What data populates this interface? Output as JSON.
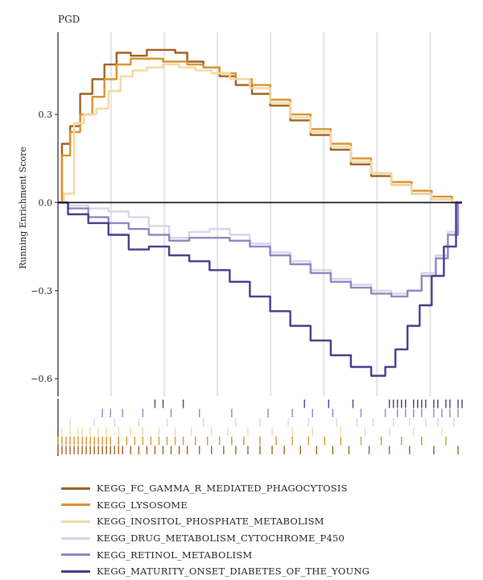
{
  "chart_data": {
    "type": "line",
    "title": "PGD",
    "xlabel": "",
    "ylabel": "Running Enrichment Score",
    "ylim": [
      -0.66,
      0.58
    ],
    "yticks": [
      0.3,
      0.0,
      -0.3,
      -0.6
    ],
    "ytick_labels": [
      "0.3",
      "0.0",
      "−0.3",
      "−0.6"
    ],
    "grid": "vertical",
    "legend_position": "bottom",
    "x_range": [
      0,
      1
    ],
    "series": [
      {
        "name": "KEGG_FC_GAMMA_R_MEDIATED_PHAGOCYTOSIS",
        "color": "#a0601e",
        "x": [
          0,
          0.02,
          0.04,
          0.07,
          0.1,
          0.13,
          0.16,
          0.2,
          0.24,
          0.28,
          0.3,
          0.34,
          0.38,
          0.42,
          0.46,
          0.5,
          0.55,
          0.6,
          0.65,
          0.7,
          0.75,
          0.8,
          0.85,
          0.9,
          0.95,
          1.0
        ],
        "values": [
          0,
          0.2,
          0.26,
          0.37,
          0.42,
          0.47,
          0.51,
          0.5,
          0.52,
          0.52,
          0.51,
          0.48,
          0.46,
          0.43,
          0.4,
          0.37,
          0.33,
          0.28,
          0.23,
          0.18,
          0.13,
          0.09,
          0.06,
          0.03,
          0.01,
          0
        ]
      },
      {
        "name": "KEGG_LYSOSOME",
        "color": "#d9922e",
        "x": [
          0,
          0.02,
          0.04,
          0.07,
          0.1,
          0.13,
          0.16,
          0.2,
          0.24,
          0.28,
          0.3,
          0.34,
          0.38,
          0.42,
          0.46,
          0.5,
          0.55,
          0.6,
          0.65,
          0.7,
          0.75,
          0.8,
          0.85,
          0.9,
          0.95,
          1.0
        ],
        "values": [
          0,
          0.16,
          0.24,
          0.3,
          0.36,
          0.42,
          0.47,
          0.49,
          0.49,
          0.48,
          0.48,
          0.47,
          0.46,
          0.44,
          0.42,
          0.4,
          0.35,
          0.3,
          0.25,
          0.2,
          0.15,
          0.1,
          0.07,
          0.04,
          0.02,
          0
        ]
      },
      {
        "name": "KEGG_INOSITOL_PHOSPHATE_METABOLISM",
        "color": "#f2d8a0",
        "x": [
          0,
          0.03,
          0.05,
          0.08,
          0.11,
          0.14,
          0.17,
          0.2,
          0.24,
          0.28,
          0.32,
          0.36,
          0.4,
          0.45,
          0.5,
          0.55,
          0.6,
          0.65,
          0.7,
          0.75,
          0.8,
          0.85,
          0.9,
          0.95,
          1.0
        ],
        "values": [
          0,
          0.03,
          0.27,
          0.3,
          0.32,
          0.38,
          0.43,
          0.45,
          0.46,
          0.47,
          0.46,
          0.45,
          0.44,
          0.42,
          0.39,
          0.34,
          0.29,
          0.24,
          0.19,
          0.14,
          0.1,
          0.06,
          0.03,
          0.01,
          0
        ]
      },
      {
        "name": "KEGG_DRUG_METABOLISM_CYTOCHROME_P450",
        "color": "#d8d4e8",
        "x": [
          0,
          0.05,
          0.1,
          0.15,
          0.2,
          0.25,
          0.3,
          0.35,
          0.4,
          0.45,
          0.5,
          0.55,
          0.6,
          0.65,
          0.7,
          0.75,
          0.8,
          0.85,
          0.88,
          0.92,
          0.95,
          0.98,
          1.0
        ],
        "values": [
          0,
          -0.01,
          -0.02,
          -0.03,
          -0.05,
          -0.08,
          -0.12,
          -0.1,
          -0.09,
          -0.11,
          -0.14,
          -0.17,
          -0.2,
          -0.23,
          -0.26,
          -0.28,
          -0.3,
          -0.31,
          -0.3,
          -0.24,
          -0.18,
          -0.1,
          0
        ]
      },
      {
        "name": "KEGG_RETINOL_METABOLISM",
        "color": "#8d87c0",
        "x": [
          0,
          0.05,
          0.1,
          0.15,
          0.2,
          0.25,
          0.3,
          0.35,
          0.4,
          0.45,
          0.5,
          0.55,
          0.6,
          0.65,
          0.7,
          0.75,
          0.8,
          0.85,
          0.88,
          0.92,
          0.95,
          0.98,
          1.0
        ],
        "values": [
          0,
          -0.02,
          -0.05,
          -0.07,
          -0.09,
          -0.11,
          -0.13,
          -0.12,
          -0.12,
          -0.13,
          -0.15,
          -0.18,
          -0.21,
          -0.24,
          -0.27,
          -0.29,
          -0.31,
          -0.32,
          -0.3,
          -0.25,
          -0.19,
          -0.11,
          0
        ]
      },
      {
        "name": "KEGG_MATURITY_ONSET_DIABETES_OF_THE_YOUNG",
        "color": "#4a3a8a",
        "x": [
          0,
          0.05,
          0.1,
          0.15,
          0.2,
          0.25,
          0.3,
          0.35,
          0.4,
          0.45,
          0.5,
          0.55,
          0.6,
          0.65,
          0.7,
          0.75,
          0.8,
          0.82,
          0.85,
          0.88,
          0.91,
          0.94,
          0.97,
          1.0
        ],
        "values": [
          0,
          -0.04,
          -0.07,
          -0.11,
          -0.16,
          -0.15,
          -0.18,
          -0.2,
          -0.23,
          -0.27,
          -0.32,
          -0.37,
          -0.42,
          -0.47,
          -0.52,
          -0.56,
          -0.59,
          -0.56,
          -0.5,
          -0.42,
          -0.35,
          -0.25,
          -0.15,
          0
        ]
      }
    ],
    "rug_rows": [
      {
        "series": "KEGG_MATURITY_ONSET_DIABETES_OF_THE_YOUNG",
        "positions": [
          0.24,
          0.26,
          0.31,
          0.61,
          0.67,
          0.73,
          0.82,
          0.83,
          0.84,
          0.85,
          0.86,
          0.88,
          0.89,
          0.9,
          0.91,
          0.93,
          0.94,
          0.96,
          0.97,
          0.99,
          1.0
        ]
      },
      {
        "series": "KEGG_RETINOL_METABOLISM",
        "positions": [
          0.11,
          0.13,
          0.16,
          0.21,
          0.28,
          0.35,
          0.43,
          0.52,
          0.58,
          0.63,
          0.68,
          0.75,
          0.81,
          0.84,
          0.86,
          0.88,
          0.9,
          0.93,
          0.95,
          0.97,
          0.99
        ]
      },
      {
        "series": "KEGG_DRUG_METABOLISM_CYTOCHROME_P450",
        "positions": [
          0.03,
          0.09,
          0.14,
          0.2,
          0.27,
          0.36,
          0.44,
          0.5,
          0.57,
          0.62,
          0.69,
          0.74,
          0.78,
          0.83,
          0.87,
          0.91,
          0.94,
          0.98
        ]
      },
      {
        "series": "KEGG_INOSITOL_PHOSPHATE_METABOLISM",
        "positions": [
          0.01,
          0.03,
          0.05,
          0.06,
          0.08,
          0.1,
          0.12,
          0.15,
          0.18,
          0.21,
          0.25,
          0.29,
          0.33,
          0.38,
          0.42,
          0.47,
          0.53,
          0.58,
          0.63,
          0.7,
          0.76,
          0.82,
          0.88,
          0.95
        ]
      },
      {
        "series": "KEGG_LYSOSOME",
        "positions": [
          0.0,
          0.01,
          0.02,
          0.03,
          0.04,
          0.05,
          0.06,
          0.07,
          0.08,
          0.09,
          0.1,
          0.11,
          0.12,
          0.13,
          0.15,
          0.17,
          0.19,
          0.21,
          0.23,
          0.25,
          0.27,
          0.29,
          0.31,
          0.34,
          0.37,
          0.4,
          0.43,
          0.46,
          0.5,
          0.54,
          0.58,
          0.62,
          0.66,
          0.7,
          0.75,
          0.8,
          0.85,
          0.9,
          0.96
        ]
      },
      {
        "series": "KEGG_FC_GAMMA_R_MEDIATED_PHAGOCYTOSIS",
        "positions": [
          0.0,
          0.01,
          0.02,
          0.03,
          0.04,
          0.05,
          0.06,
          0.07,
          0.08,
          0.09,
          0.1,
          0.11,
          0.12,
          0.13,
          0.14,
          0.15,
          0.16,
          0.18,
          0.2,
          0.22,
          0.24,
          0.26,
          0.28,
          0.3,
          0.32,
          0.35,
          0.38,
          0.41,
          0.44,
          0.47,
          0.5,
          0.53,
          0.56,
          0.6,
          0.64,
          0.68,
          0.72,
          0.77,
          0.82,
          0.87,
          0.93,
          0.99
        ]
      }
    ]
  }
}
